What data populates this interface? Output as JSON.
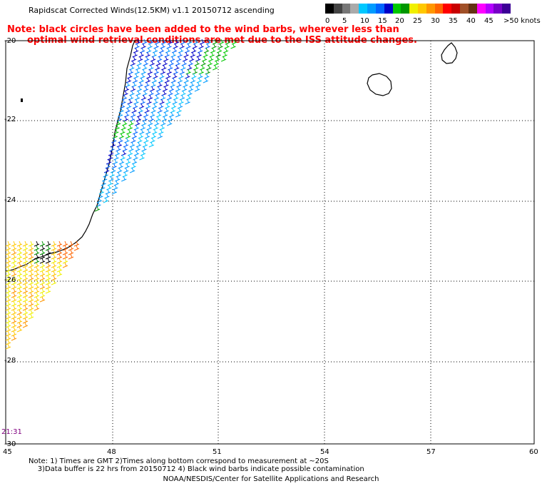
{
  "header": {
    "title": "Rapidscat Corrected Winds(12.5KM) v1.1 20150712 ascending"
  },
  "note": {
    "line1": "Note: black circles have been added to the wind barbs, wherever less than",
    "line2": "optimal wind retrieval conditions are met due to the ISS attitude changes."
  },
  "color_scale": {
    "colors": [
      "#000000",
      "#444444",
      "#777777",
      "#aaaaaa",
      "#00c8ff",
      "#009bff",
      "#0064ff",
      "#0000c8",
      "#00c800",
      "#009600",
      "#f0f000",
      "#ffc800",
      "#ff9600",
      "#ff6400",
      "#ff0000",
      "#c80000",
      "#a05028",
      "#643214",
      "#ff00ff",
      "#b400ff",
      "#7800c8",
      "#3c0096"
    ],
    "labels": [
      "0",
      "5",
      "10",
      "15",
      "20",
      "25",
      "30",
      "35",
      "40",
      "45",
      ">50 knots"
    ]
  },
  "axes": {
    "lat_labels": [
      "-20",
      "-22",
      "-24",
      "-26",
      "-28",
      "-30"
    ],
    "lon_labels": [
      "45",
      "48",
      "51",
      "54",
      "57",
      "60"
    ]
  },
  "time_label": "21:31",
  "footnote": {
    "line1": "Note: 1) Times are GMT 2)Times along bottom correspond to measurement at ~20S",
    "line2": "3)Data buffer is 22 hrs from 20150712 4) Black wind barbs indicate possible contamination"
  },
  "credit": "NOAA/NESDIS/Center for Satellite Applications and Research"
}
